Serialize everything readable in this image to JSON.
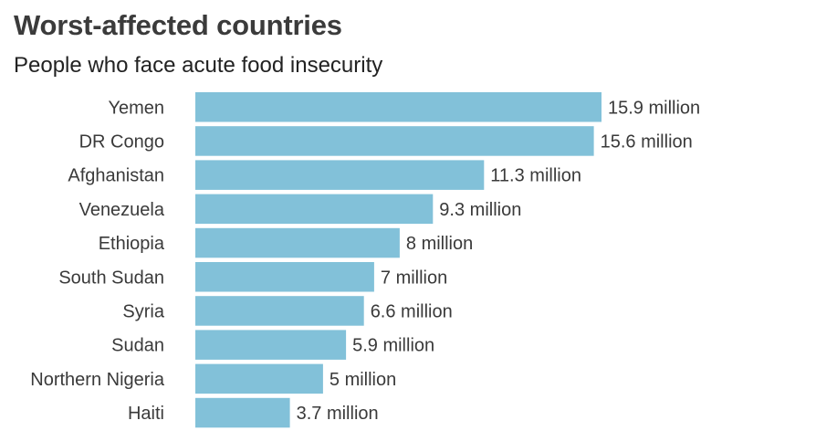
{
  "chart_data": {
    "type": "bar",
    "orientation": "horizontal",
    "title": "Worst-affected countries",
    "subtitle": "People who face acute food insecurity",
    "categories": [
      "Yemen",
      "DR Congo",
      "Afghanistan",
      "Venezuela",
      "Ethiopia",
      "South Sudan",
      "Syria",
      "Sudan",
      "Northern Nigeria",
      "Haiti"
    ],
    "values": [
      15.9,
      15.6,
      11.3,
      9.3,
      8,
      7,
      6.6,
      5.9,
      5,
      3.7
    ],
    "labels": [
      "15.9 million",
      "15.6 million",
      "11.3 million",
      "9.3 million",
      "8 million",
      "7 million",
      "6.6 million",
      "5.9 million",
      "5 million",
      "3.7 million"
    ],
    "unit": "million",
    "xlabel": "",
    "ylabel": "",
    "xlim": [
      0,
      15.9
    ],
    "grid": false,
    "legend": "none",
    "bar_color": "#82c1d9"
  }
}
